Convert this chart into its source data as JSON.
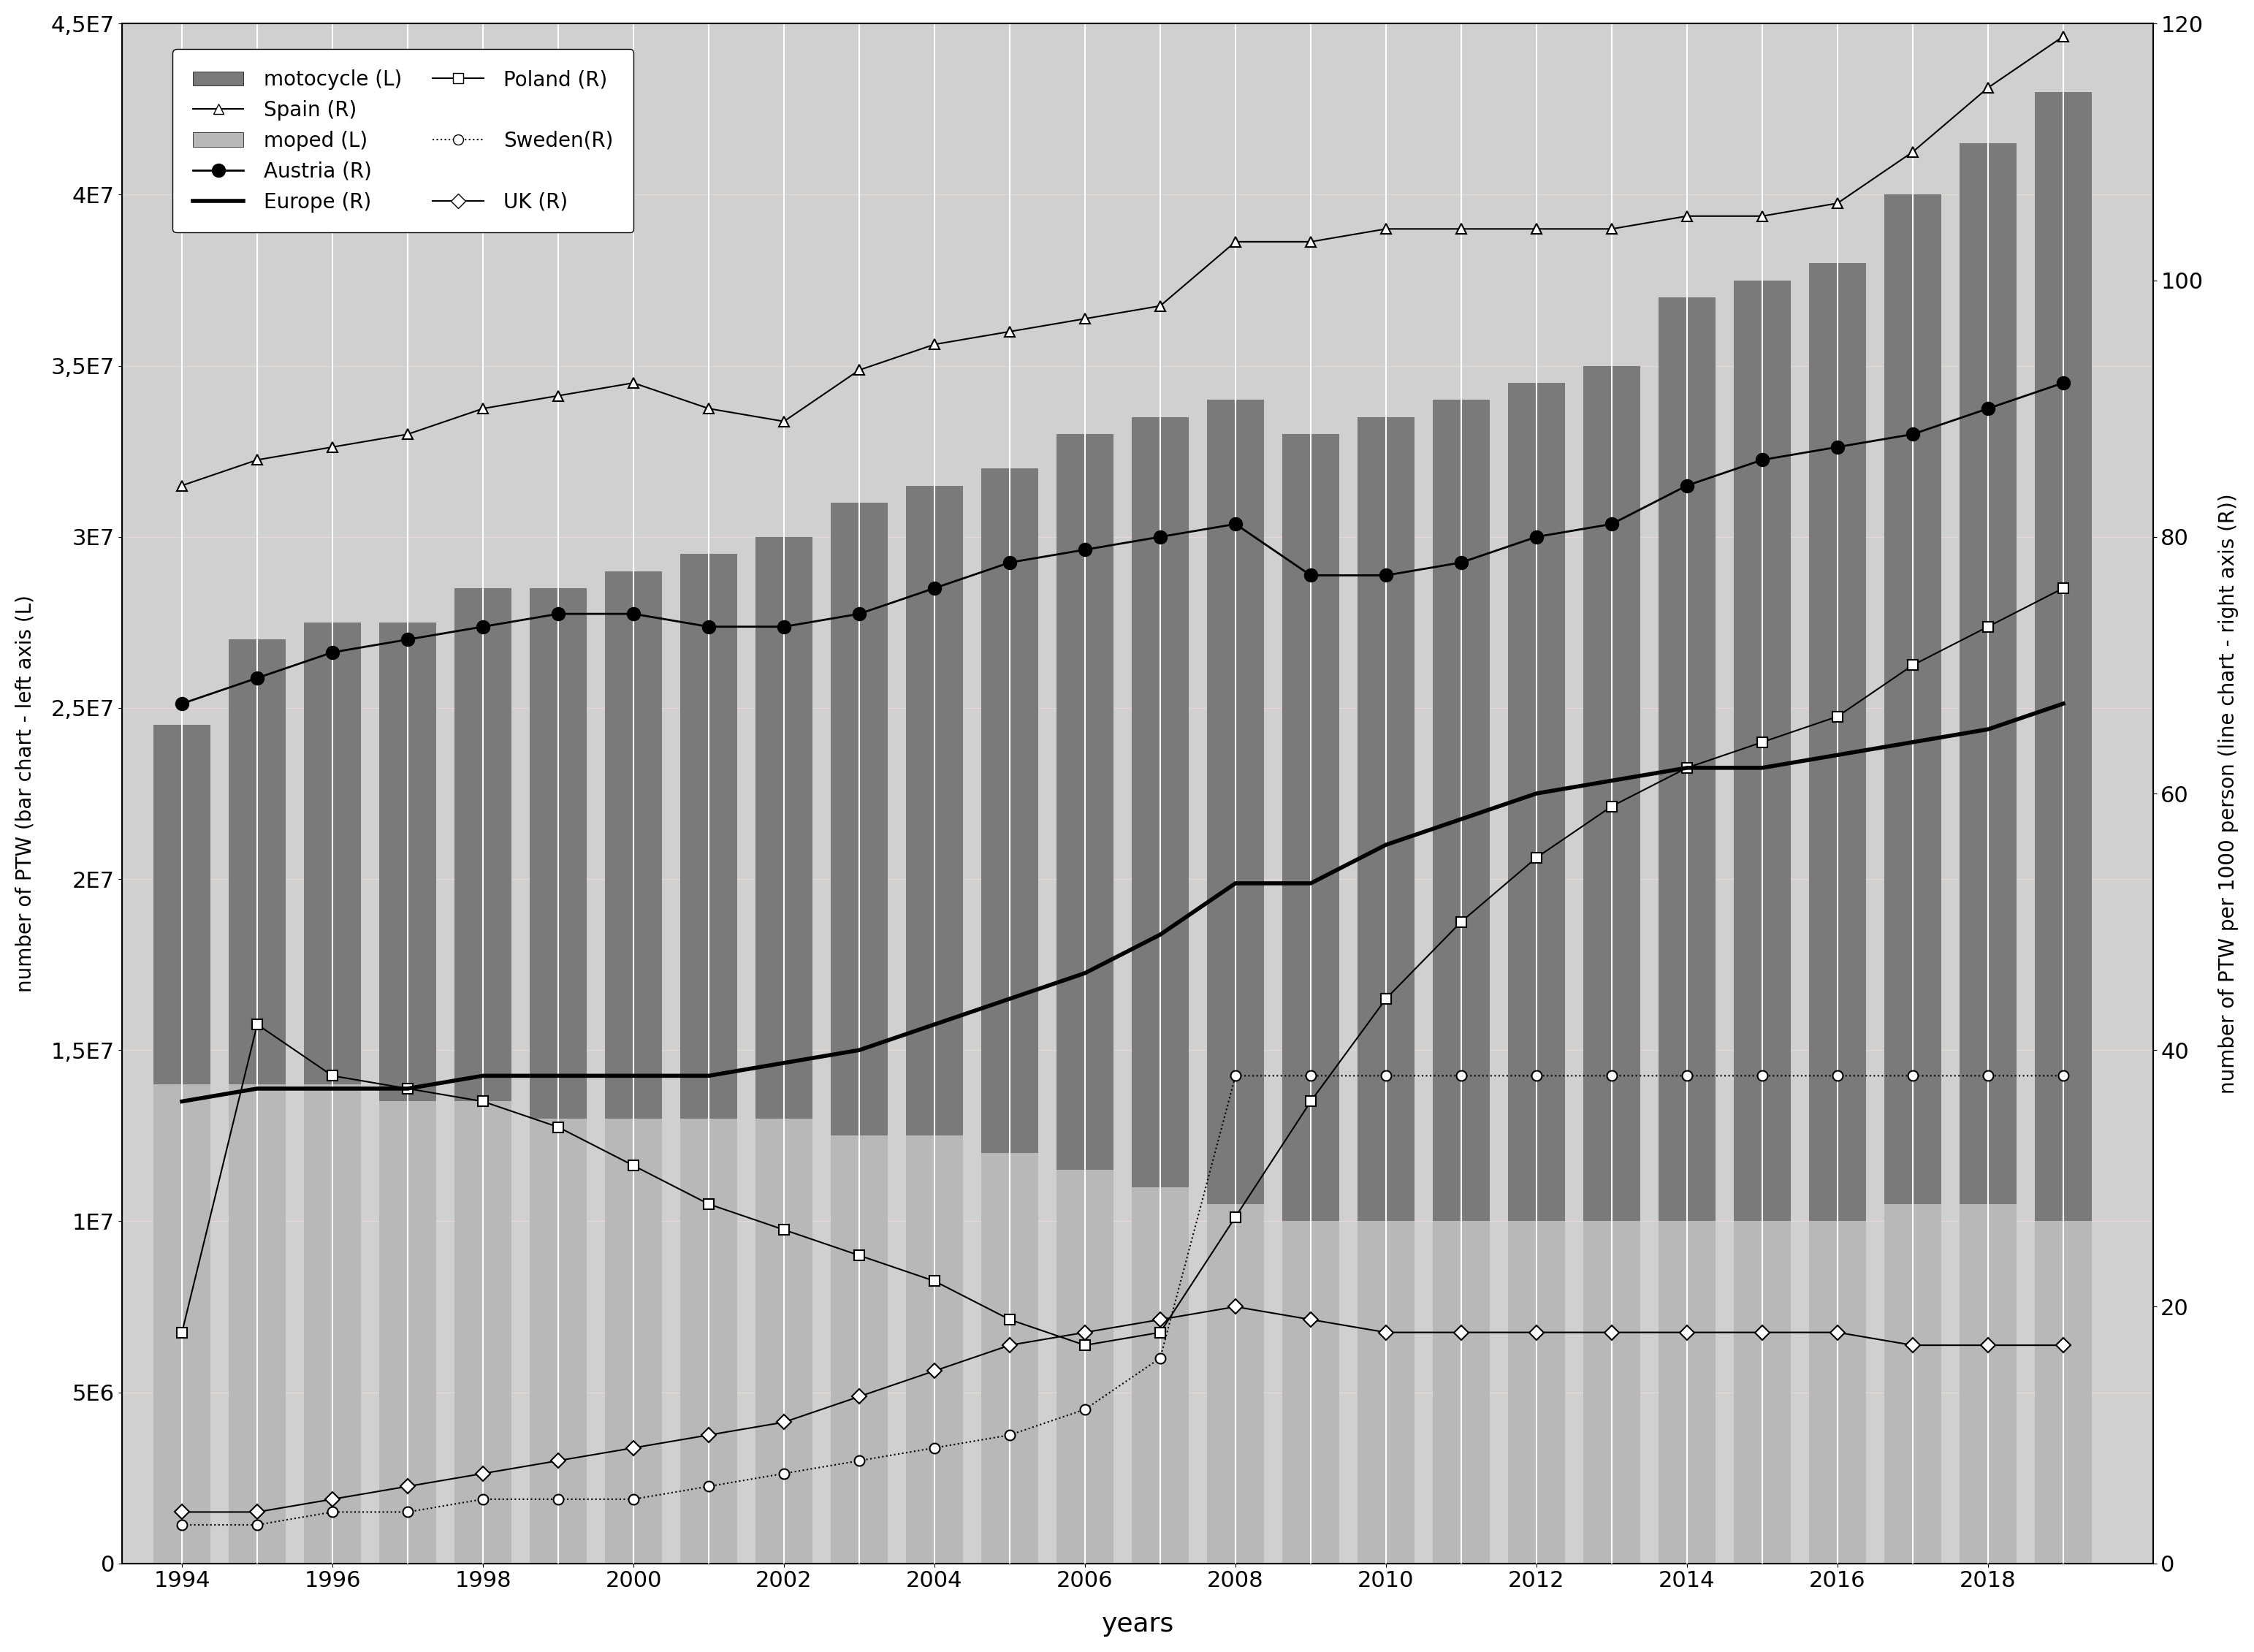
{
  "years": [
    1994,
    1995,
    1996,
    1997,
    1998,
    1999,
    2000,
    2001,
    2002,
    2003,
    2004,
    2005,
    2006,
    2007,
    2008,
    2009,
    2010,
    2011,
    2012,
    2013,
    2014,
    2015,
    2016,
    2017,
    2018,
    2019
  ],
  "motorcycle": [
    10500000,
    13000000,
    13500000,
    14000000,
    15000000,
    15500000,
    16000000,
    16500000,
    17000000,
    18500000,
    19000000,
    20000000,
    21500000,
    22500000,
    23500000,
    23000000,
    23500000,
    24000000,
    24500000,
    25000000,
    27000000,
    27500000,
    28000000,
    29500000,
    31000000,
    33000000
  ],
  "moped": [
    14000000,
    14000000,
    14000000,
    13500000,
    13500000,
    13000000,
    13000000,
    13000000,
    13000000,
    12500000,
    12500000,
    12000000,
    11500000,
    11000000,
    10500000,
    10000000,
    10000000,
    10000000,
    10000000,
    10000000,
    10000000,
    10000000,
    10000000,
    10500000,
    10500000,
    10000000
  ],
  "spain": [
    84,
    86,
    87,
    88,
    90,
    91,
    92,
    90,
    89,
    93,
    95,
    96,
    97,
    98,
    103,
    103,
    104,
    104,
    104,
    104,
    105,
    105,
    106,
    110,
    115,
    119
  ],
  "austria": [
    67,
    69,
    71,
    72,
    73,
    74,
    74,
    73,
    73,
    74,
    76,
    78,
    79,
    80,
    81,
    77,
    77,
    78,
    80,
    81,
    84,
    86,
    87,
    88,
    90,
    92
  ],
  "poland": [
    18,
    42,
    38,
    37,
    36,
    34,
    31,
    28,
    26,
    24,
    22,
    19,
    17,
    18,
    27,
    36,
    44,
    50,
    55,
    59,
    62,
    64,
    66,
    70,
    73,
    76
  ],
  "sweden": [
    3,
    3,
    4,
    4,
    5,
    5,
    5,
    6,
    7,
    8,
    9,
    10,
    12,
    16,
    38,
    38,
    38,
    38,
    38,
    38,
    38,
    38,
    38,
    38,
    38,
    38
  ],
  "uk": [
    4,
    4,
    5,
    6,
    7,
    8,
    9,
    10,
    11,
    13,
    15,
    17,
    18,
    19,
    20,
    19,
    18,
    18,
    18,
    18,
    18,
    18,
    18,
    17,
    17,
    17
  ],
  "europe": [
    36,
    37,
    37,
    37,
    38,
    38,
    38,
    38,
    39,
    40,
    42,
    44,
    46,
    49,
    53,
    53,
    56,
    58,
    60,
    61,
    62,
    62,
    63,
    64,
    65,
    67
  ],
  "motorcycle_color": "#7a7a7a",
  "moped_color": "#b8b8b8",
  "ylim_left": [
    0,
    45000000
  ],
  "ylim_right": [
    0,
    120
  ],
  "ylabel_left": "number of PTW (bar chart - left axis (L)",
  "ylabel_right": "number of PTW per 1000 person (line chart - right axis (R))",
  "xlabel": "years",
  "yticks_left": [
    0,
    5000000,
    10000000,
    15000000,
    20000000,
    25000000,
    30000000,
    35000000,
    40000000,
    45000000
  ],
  "ytick_labels_left": [
    "0",
    "5E6",
    "1E7",
    "1,5E7",
    "2E7",
    "2,5E7",
    "3E7",
    "3,5E7",
    "4E7",
    "4,5E7"
  ],
  "yticks_right": [
    0,
    20,
    40,
    60,
    80,
    100,
    120
  ],
  "ytick_labels_right": [
    "0",
    "20",
    "40",
    "60",
    "80",
    "100",
    "120"
  ],
  "xticks": [
    1994,
    1996,
    1998,
    2000,
    2002,
    2004,
    2006,
    2008,
    2010,
    2012,
    2014,
    2016,
    2018
  ],
  "plot_bg_color": "#d0d0d0",
  "fig_bg_color": "#ffffff"
}
